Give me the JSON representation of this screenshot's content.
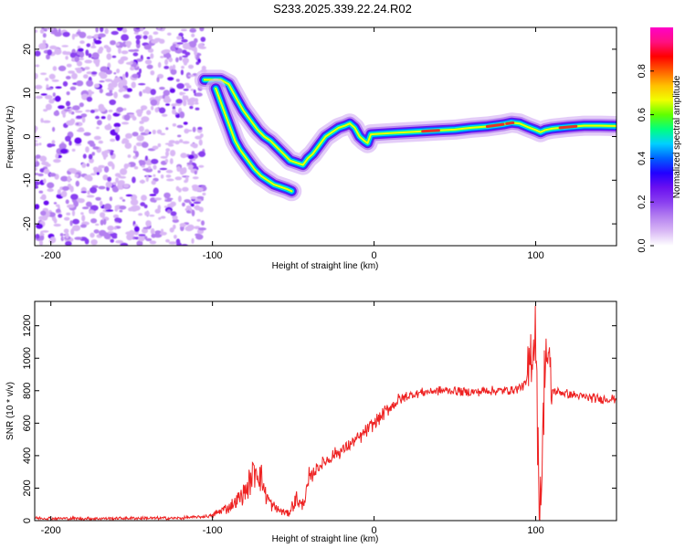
{
  "figure_title": "S233.2025.339.22.24.R02",
  "colors": {
    "snr_line": "#ee2222",
    "ridge_core": "#e63228",
    "frame": "#000000"
  },
  "colormap": [
    "#ffffff",
    "#d9b8f5",
    "#b480f0",
    "#8a3ff0",
    "#6a10f0",
    "#2200ff",
    "#0060ff",
    "#00d0ff",
    "#00ff80",
    "#60ff00",
    "#f0ff00",
    "#ffc000",
    "#ff6000",
    "#ff0000",
    "#ff1080",
    "#ff00c8"
  ],
  "chart_data": [
    {
      "type": "heatmap",
      "name": "spectrogram",
      "title": "S233.2025.339.22.24.R02",
      "xlabel": "Height of straight line (km)",
      "ylabel": "Frequency (Hz)",
      "xlim": [
        -210,
        150
      ],
      "ylim": [
        -25,
        25
      ],
      "xticks": [
        -200,
        -100,
        0,
        100
      ],
      "yticks": [
        20,
        10,
        0,
        -10,
        -20
      ],
      "noise_region_x": [
        -210,
        -105
      ],
      "ridge_main": {
        "x": [
          -105,
          -100,
          -95,
          -90,
          -87,
          -84,
          -81,
          -78,
          -75,
          -72,
          -68,
          -64,
          -60,
          -56,
          -52,
          -48,
          -44,
          -41,
          -38,
          -34,
          -30,
          -26,
          -22,
          -18,
          -15,
          -12,
          -9,
          -6,
          -4,
          -2,
          2,
          10,
          20,
          30,
          40,
          50,
          60,
          70,
          80,
          85,
          90,
          95,
          100,
          103,
          106,
          110,
          120,
          130,
          140,
          150
        ],
        "y": [
          13,
          13,
          13,
          12,
          10,
          8,
          6,
          4.5,
          3,
          1.5,
          0,
          -1,
          -2.5,
          -4,
          -5.5,
          -6,
          -6.5,
          -5,
          -4,
          -2,
          0,
          1,
          2,
          2.5,
          3,
          2,
          0,
          -1,
          -1.5,
          0.5,
          0.6,
          0.8,
          1,
          1.2,
          1.4,
          1.6,
          2,
          2.3,
          2.8,
          3.2,
          3,
          2.2,
          1.5,
          1,
          1.5,
          1.8,
          2.2,
          2.5,
          2.5,
          2.4
        ]
      },
      "ridge_branch": {
        "x": [
          -98,
          -95,
          -92,
          -89,
          -86,
          -83,
          -80,
          -77,
          -74,
          -70,
          -66,
          -62,
          -58,
          -54,
          -51
        ],
        "y": [
          11,
          8,
          5,
          2,
          -1,
          -3,
          -4.5,
          -6,
          -7.5,
          -9,
          -10,
          -11,
          -11.5,
          -12,
          -12.5
        ]
      },
      "colorbar": {
        "label": "Normalized spectral amplitude",
        "range": [
          0.0,
          1.0
        ],
        "ticks": [
          "0.0",
          "0.2",
          "0.4",
          "0.6",
          "0.8"
        ]
      }
    },
    {
      "type": "line",
      "name": "snr",
      "xlabel": "Height of straight line (km)",
      "ylabel": "SNR (10 * v/v)",
      "xlim": [
        -210,
        150
      ],
      "ylim": [
        0,
        1350
      ],
      "xticks": [
        -200,
        -100,
        0,
        100
      ],
      "yticks": [
        0,
        200,
        400,
        600,
        800,
        1000,
        1200
      ],
      "series": [
        {
          "name": "SNR",
          "x": [
            -210,
            -180,
            -150,
            -120,
            -105,
            -100,
            -95,
            -90,
            -85,
            -80,
            -76,
            -73,
            -70,
            -67,
            -63,
            -58,
            -53,
            -48,
            -45,
            -42,
            -40,
            -36,
            -32,
            -28,
            -24,
            -20,
            -16,
            -12,
            -8,
            -4,
            0,
            5,
            10,
            15,
            20,
            25,
            30,
            40,
            50,
            60,
            70,
            80,
            88,
            94,
            97,
            100,
            102,
            104,
            106,
            110,
            115,
            120,
            130,
            140,
            150
          ],
          "y": [
            15,
            12,
            15,
            15,
            25,
            30,
            60,
            80,
            120,
            170,
            260,
            330,
            270,
            160,
            90,
            60,
            45,
            140,
            90,
            160,
            250,
            320,
            350,
            380,
            410,
            430,
            460,
            490,
            520,
            560,
            600,
            650,
            700,
            740,
            760,
            780,
            790,
            800,
            800,
            790,
            800,
            800,
            810,
            840,
            1000,
            1200,
            150,
            300,
            1100,
            800,
            790,
            780,
            760,
            750,
            750
          ]
        }
      ]
    }
  ]
}
